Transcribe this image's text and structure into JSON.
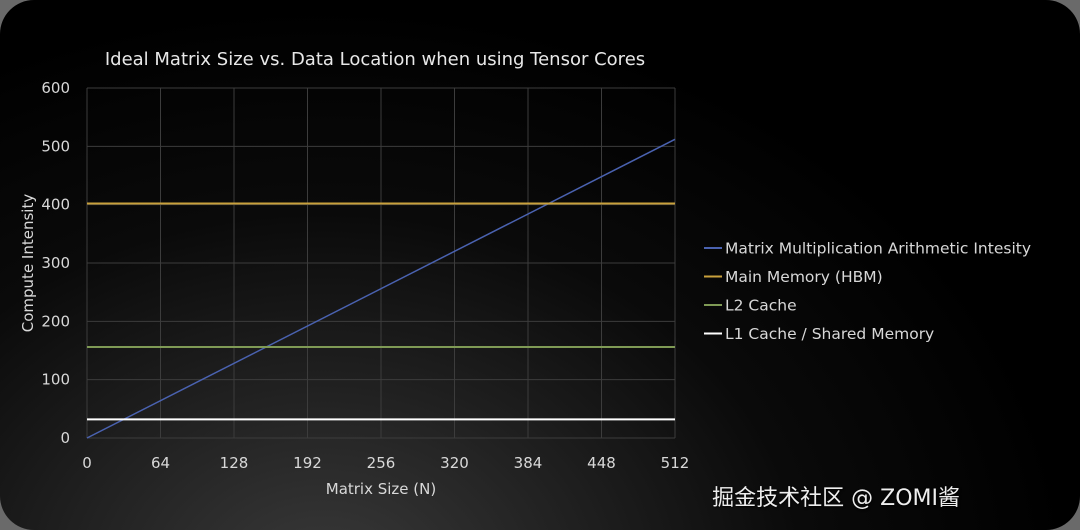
{
  "chart_data": {
    "type": "line",
    "title": "Ideal Matrix Size vs. Data Location when using Tensor Cores",
    "xlabel": "Matrix Size (N)",
    "ylabel": "Compute Intensity",
    "xlim": [
      0,
      512
    ],
    "ylim": [
      0,
      600
    ],
    "xticks": [
      0,
      64,
      128,
      192,
      256,
      320,
      384,
      448,
      512
    ],
    "yticks": [
      0,
      100,
      200,
      300,
      400,
      500,
      600
    ],
    "grid": true,
    "legend_position": "right",
    "series": [
      {
        "name": "Matrix Multiplication Arithmetic Intesity",
        "color": "#4a62b0",
        "x": [
          0,
          512
        ],
        "y": [
          0,
          512
        ]
      },
      {
        "name": "Main Memory (HBM)",
        "color": "#c9a13c",
        "x": [
          0,
          512
        ],
        "y": [
          402,
          402
        ]
      },
      {
        "name": "L2 Cache",
        "color": "#7f9a55",
        "x": [
          0,
          512
        ],
        "y": [
          156,
          156
        ]
      },
      {
        "name": "L1 Cache / Shared Memory",
        "color": "#ffffff",
        "x": [
          0,
          512
        ],
        "y": [
          32,
          32
        ]
      }
    ]
  },
  "watermark": {
    "text": "掘金技术社区 @ ZOMI酱",
    "logo": "ZOMI酱"
  }
}
